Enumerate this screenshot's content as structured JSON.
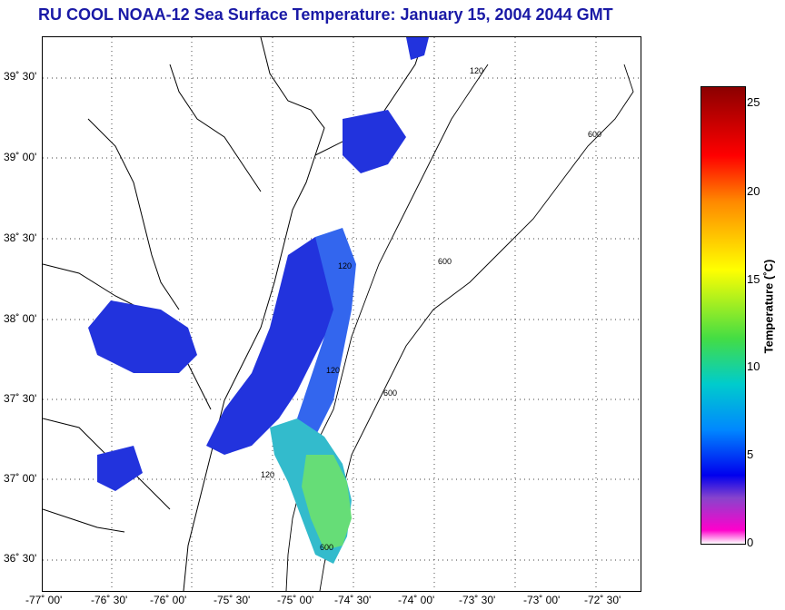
{
  "title": "RU COOL  NOAA-12  Sea Surface Temperature:  January 15, 2004 2044 GMT",
  "axes": {
    "y_labels": [
      "39˚ 30'",
      "39˚ 00'",
      "38˚ 30'",
      "38˚ 00'",
      "37˚ 30'",
      "37˚ 00'",
      "36˚ 30'"
    ],
    "x_labels": [
      "-77˚ 00'",
      "-76˚ 30'",
      "-76˚ 00'",
      "-75˚ 30'",
      "-75˚ 00'",
      "-74˚ 30'",
      "-74˚ 00'",
      "-73˚ 30'",
      "-73˚ 00'",
      "-72˚ 30'"
    ]
  },
  "colorbar": {
    "label": "Temperature (˚C)",
    "ticks": [
      "25",
      "20",
      "15",
      "10",
      "5",
      "0"
    ],
    "range": [
      0,
      26
    ]
  },
  "contours": {
    "labels": [
      "120",
      "600"
    ]
  },
  "colors": {
    "title": "#1a1aa6",
    "warm_water": "#2233dd",
    "cool_water": "#44aaff"
  }
}
